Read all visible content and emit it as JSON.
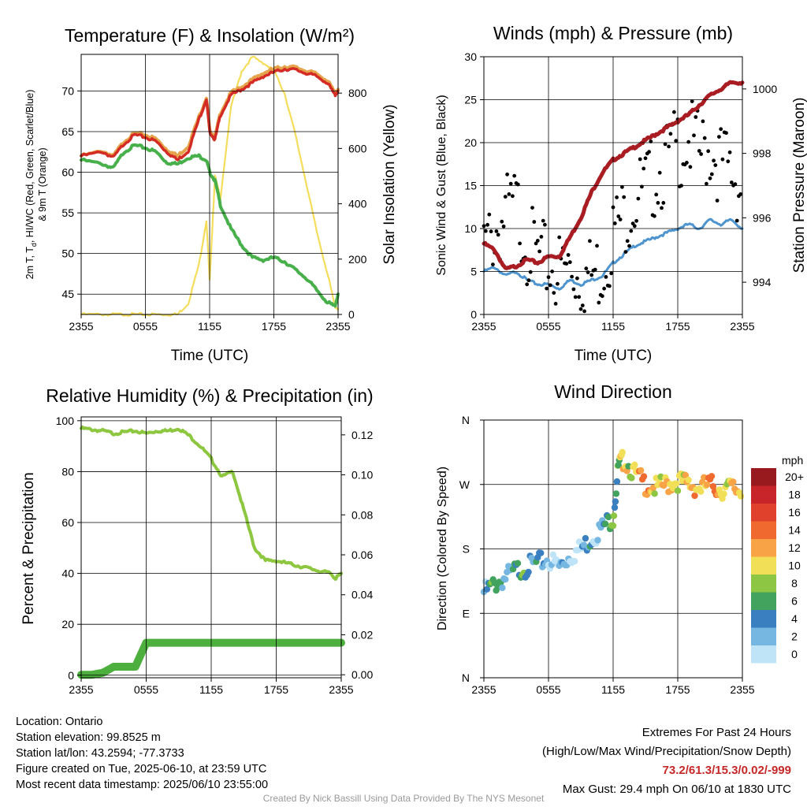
{
  "colors": {
    "temp": "#d42c25",
    "windchill": "#e5a44b",
    "dewpoint": "#47b04b",
    "solar": "#f5dd5c",
    "wind": "#4e94cf",
    "gust": "#000000",
    "pressure": "#a81c22",
    "rh": "#8dc63f",
    "precip": "#4caf3e"
  },
  "chart_data": [
    {
      "type": "line",
      "title": "Temperature (F) & Insolation (W/m²)",
      "xlabel": "Time (UTC)",
      "ylabel": "2m T, Td, HI/WC (Red, Green, Scarlet/Blue) & 9m T (Orange)",
      "ylabel_line1": "2m T, T",
      "ylabel_sub": "d",
      "ylabel_line1_rest": ", HI/WC (Red, Green, Scarlet/Blue)",
      "ylabel_line2": "& 9m T (Orange)",
      "y2label": "Solar Insolation (Yellow)",
      "xticks": [
        "2355",
        "0555",
        "1155",
        "1755",
        "2355"
      ],
      "ylim": [
        42.5,
        74.5
      ],
      "yticks": [
        "45",
        "50",
        "55",
        "60",
        "65",
        "70"
      ],
      "y2lim": [
        0,
        940
      ],
      "y2ticks": [
        "0",
        "200",
        "400",
        "600",
        "800"
      ],
      "x_hours": [
        0,
        2,
        3,
        4,
        5,
        6,
        7,
        8,
        9,
        10,
        11,
        11.7,
        12,
        12.5,
        13,
        14,
        15,
        16,
        17,
        18,
        19,
        20,
        21,
        22,
        23,
        23.7,
        24
      ],
      "series": [
        {
          "name": "2m T",
          "axis": "left",
          "color_key": "temp",
          "values": [
            62,
            62.5,
            61.8,
            63.5,
            64.6,
            64.3,
            63.8,
            62.5,
            61.5,
            62.6,
            66.5,
            69,
            65,
            64,
            67,
            69.5,
            70.2,
            71,
            71.8,
            72.3,
            72.7,
            72.6,
            72.2,
            71.8,
            71,
            69.5,
            70
          ]
        },
        {
          "name": "9m T",
          "axis": "left",
          "color_key": "windchill",
          "values": [
            62,
            62.6,
            62,
            63.8,
            64.8,
            64.6,
            64.1,
            62.8,
            62,
            63.2,
            66.8,
            69.2,
            65.2,
            64.3,
            67.3,
            69.8,
            70.5,
            71.4,
            72.2,
            72.7,
            73,
            72.9,
            72.5,
            72.1,
            71.3,
            69.8,
            70.2
          ]
        },
        {
          "name": "2m Td",
          "axis": "left",
          "color_key": "dewpoint",
          "values": [
            61.5,
            61,
            60.5,
            62.5,
            63.3,
            63,
            62.5,
            61.2,
            61,
            61.8,
            62,
            61.5,
            60,
            59,
            56,
            53,
            51,
            49.5,
            49.2,
            49.5,
            49,
            48,
            47,
            45.5,
            44,
            43.5,
            45
          ]
        },
        {
          "name": "Solar",
          "axis": "right",
          "color_key": "solar",
          "values": [
            0,
            0,
            0,
            0,
            0,
            0,
            0,
            0,
            0,
            40,
            180,
            340,
            120,
            500,
            420,
            750,
            880,
            930,
            910,
            880,
            800,
            650,
            480,
            300,
            150,
            30,
            20
          ]
        }
      ]
    },
    {
      "type": "line",
      "title": "Winds (mph) & Pressure (mb)",
      "xlabel": "Time (UTC)",
      "ylabel": "Sonic Wind & Gust (Blue, Black)",
      "y2label": "Station Pressure (Maroon)",
      "xticks": [
        "2355",
        "0555",
        "1155",
        "1755",
        "2355"
      ],
      "ylim": [
        0,
        30
      ],
      "yticks": [
        "0",
        "5",
        "10",
        "15",
        "20",
        "25",
        "30"
      ],
      "y2lim": [
        993,
        1001
      ],
      "y2ticks": [
        "994",
        "996",
        "998",
        "1000"
      ],
      "x_hours": [
        0,
        1,
        2,
        3,
        4,
        5,
        6,
        7,
        8,
        9,
        10,
        11,
        12,
        13,
        14,
        15,
        16,
        17,
        18,
        19,
        20,
        21,
        22,
        23,
        24
      ],
      "series": [
        {
          "name": "Sonic Wind",
          "axis": "left",
          "color_key": "wind",
          "values": [
            5,
            5.5,
            4.5,
            5,
            4,
            3.5,
            3.5,
            3,
            4,
            3.5,
            4,
            4.5,
            6,
            7,
            8,
            8.5,
            9,
            9.5,
            10,
            10.5,
            10,
            11,
            10.5,
            11,
            10
          ]
        },
        {
          "name": "Gust",
          "axis": "left",
          "color_key": "gust",
          "values": [
            9,
            11,
            13,
            14,
            10,
            8,
            7,
            6.5,
            7,
            6,
            6,
            7,
            11,
            13,
            15,
            16,
            18,
            19,
            21,
            22,
            20,
            21,
            19,
            18,
            16
          ]
        },
        {
          "name": "Station Pressure",
          "axis": "right",
          "color_key": "pressure",
          "values": [
            995.2,
            995,
            994.4,
            994.5,
            994.7,
            994.6,
            994.8,
            994.8,
            995.4,
            996,
            996.8,
            997.4,
            997.8,
            998,
            998.2,
            998.4,
            998.6,
            998.8,
            999,
            999.2,
            999.5,
            999.8,
            1000,
            1000.2,
            1000.2
          ]
        }
      ]
    },
    {
      "type": "line",
      "title": "Relative Humidity (%) & Precipitation (in)",
      "ylabel": "Percent & Precipitation",
      "xticks": [
        "2355",
        "0555",
        "1155",
        "1755",
        "2355"
      ],
      "ylim": [
        -1,
        101.5
      ],
      "yticks": [
        "0",
        "20",
        "40",
        "60",
        "80",
        "100"
      ],
      "y2lim": [
        -0.0015,
        0.129
      ],
      "y2ticks": [
        "0.00",
        "0.02",
        "0.04",
        "0.06",
        "0.08",
        "0.10",
        "0.12"
      ],
      "x_hours": [
        0,
        1,
        2,
        3,
        4,
        5,
        6,
        7,
        8,
        9,
        10,
        11,
        12,
        13,
        14,
        15,
        16,
        17,
        18,
        19,
        20,
        21,
        22,
        23,
        23.5,
        24
      ],
      "series": [
        {
          "name": "RH",
          "axis": "left",
          "color_key": "rh",
          "values": [
            97,
            96.5,
            96,
            95,
            95.5,
            96,
            95,
            96,
            96,
            97,
            94,
            90,
            85,
            78,
            80,
            65,
            50,
            45,
            45,
            44,
            43,
            42,
            41,
            40,
            38,
            40
          ]
        },
        {
          "name": "Precipitation",
          "axis": "right",
          "color_key": "precip",
          "values": [
            0,
            0,
            0.001,
            0.004,
            0.004,
            0.004,
            0.016,
            0.016,
            0.016,
            0.016,
            0.016,
            0.016,
            0.016,
            0.016,
            0.016,
            0.016,
            0.016,
            0.016,
            0.016,
            0.016,
            0.016,
            0.016,
            0.016,
            0.016,
            0.016,
            0.016
          ]
        }
      ]
    },
    {
      "type": "scatter",
      "title": "Wind Direction",
      "ylabel": "Direction (Colored By Speed)",
      "xticks": [
        "2355",
        "0555",
        "1155",
        "1755",
        "2355"
      ],
      "yticks": [
        "N",
        "E",
        "S",
        "W",
        "N"
      ],
      "ylim": [
        0,
        360
      ],
      "x_hours": [
        0,
        1,
        2,
        3,
        4,
        5,
        6,
        7,
        8,
        9,
        10,
        11,
        12,
        12.5,
        13,
        14,
        15,
        16,
        17,
        18,
        19,
        20,
        21,
        22,
        23,
        24
      ],
      "direction_deg": [
        125,
        135,
        145,
        155,
        160,
        165,
        170,
        160,
        175,
        185,
        200,
        215,
        230,
        300,
        310,
        290,
        275,
        270,
        275,
        280,
        275,
        270,
        275,
        268,
        270,
        265
      ],
      "speed_mph": [
        4,
        6,
        5,
        5,
        6,
        4,
        3,
        2,
        2,
        3,
        4,
        4,
        6,
        9,
        10,
        12,
        13,
        12,
        11,
        12,
        10,
        13,
        14,
        12,
        11,
        10
      ],
      "colorbar": {
        "title": "mph",
        "labels": [
          "20+",
          "18",
          "16",
          "14",
          "12",
          "10",
          "8",
          "6",
          "4",
          "2",
          "0"
        ],
        "colors": [
          "#98191e",
          "#c8252a",
          "#e0412c",
          "#f06a2f",
          "#f9a347",
          "#f1df57",
          "#8cc642",
          "#42a35e",
          "#3a7fbf",
          "#76b7e2",
          "#bfe4f7"
        ]
      }
    }
  ],
  "info": {
    "location": "Location: Ontario",
    "elevation": "Station elevation: 99.8525 m",
    "latlon": "Station lat/lon: 43.2594; -77.3733",
    "created": "Figure created on Tue, 2025-06-10, at 23:59 UTC",
    "recent": "Most recent data timestamp: 2025/06/10 23:55:00",
    "extremes_title": "Extremes For Past 24 Hours",
    "extremes_keys": "(High/Low/Max Wind/Precipitation/Snow Depth)",
    "extremes_values": "73.2/61.3/15.3/0.02/-999",
    "max_gust": "Max Gust: 29.4 mph On 06/10 at 1830 UTC",
    "credit": "Created By Nick Bassill Using Data Provided By The NYS Mesonet"
  }
}
